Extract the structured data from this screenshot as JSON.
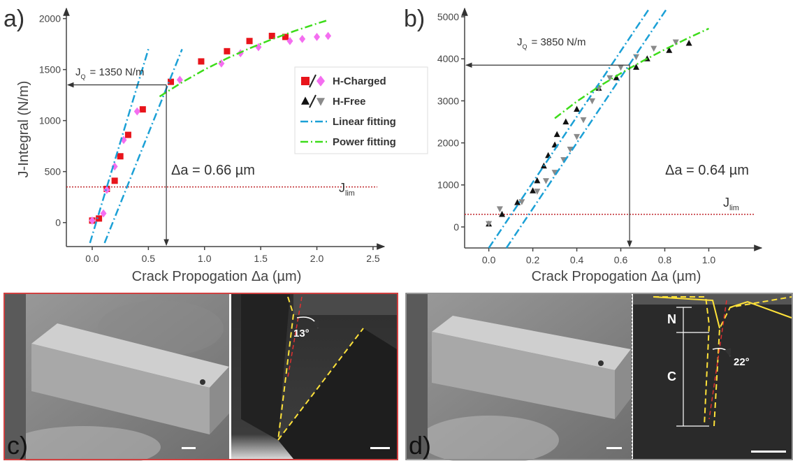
{
  "chart_data": [
    {
      "type": "scatter",
      "panel_label": "a)",
      "x_label": "Crack Propogation Δa (µm)",
      "y_label": "J-Integral (N/m)",
      "xlim": [
        -0.23,
        2.6
      ],
      "ylim": [
        -235,
        2100
      ],
      "xticks": [
        {
          "value": 0,
          "label": "0.0"
        },
        0.5,
        {
          "value": 1,
          "label": "1.0"
        },
        1.5,
        {
          "value": 2,
          "label": "2.0"
        },
        2.5
      ],
      "yticks": [
        0,
        500,
        1000,
        1500,
        2000
      ],
      "series": [
        {
          "marker": "square",
          "color": "#e8141b",
          "x": [
            0.0,
            0.06,
            0.13,
            0.2,
            0.25,
            0.32,
            0.45,
            0.7,
            0.97,
            1.2,
            1.4,
            1.6,
            1.72
          ],
          "values": [
            20,
            40,
            330,
            410,
            650,
            860,
            1110,
            1380,
            1580,
            1680,
            1780,
            1830,
            1820
          ]
        },
        {
          "marker": "diamond",
          "color": "#f46ef0",
          "x": [
            0.0,
            0.1,
            0.13,
            0.2,
            0.28,
            0.4,
            0.78,
            1.15,
            1.32,
            1.48,
            1.76,
            1.87,
            2.0,
            2.1
          ],
          "values": [
            20,
            90,
            320,
            550,
            810,
            1090,
            1400,
            1560,
            1660,
            1720,
            1780,
            1800,
            1820,
            1830
          ]
        },
        {
          "style": "dash-dot",
          "color": "#1ba0d6",
          "x": [
            -0.02,
            0.5
          ],
          "values": [
            -200,
            1700
          ]
        },
        {
          "style": "dash-dot",
          "color": "#1ba0d6",
          "x": [
            0.11,
            0.8
          ],
          "values": [
            -200,
            1700
          ]
        },
        {
          "style": "dash-dot",
          "color": "#3ddc1a",
          "x": [
            0.6,
            0.8,
            1.0,
            1.2,
            1.4,
            1.6,
            1.8,
            2.0,
            2.1
          ],
          "values": [
            1236,
            1375,
            1500,
            1610,
            1708,
            1797,
            1878,
            1951,
            1985
          ]
        }
      ],
      "jq": {
        "value": 1350,
        "symbol": "J",
        "subscript": "Q",
        "text": "= 1350 N/m"
      },
      "delta_a": {
        "value": 0.66,
        "label": "Δa = 0.66 µm"
      },
      "jlim": {
        "value": 350,
        "symbol": "J",
        "subscript": "lim",
        "color": "#c0282d"
      }
    },
    {
      "type": "scatter",
      "panel_label": "b)",
      "x_label": "Crack Propogation Δa (µm)",
      "xlim": [
        -0.11,
        1.24
      ],
      "ylim": [
        -500,
        5200
      ],
      "xticks": [
        {
          "value": 0,
          "label": "0.0"
        },
        0.2,
        0.4,
        0.6,
        0.8,
        {
          "value": 1,
          "label": "1.0"
        }
      ],
      "yticks": [
        0,
        1000,
        2000,
        3000,
        4000,
        5000
      ],
      "series": [
        {
          "marker": "triangle",
          "color": "#111111",
          "x": [
            0.0,
            0.06,
            0.13,
            0.2,
            0.22,
            0.25,
            0.27,
            0.3,
            0.31,
            0.35,
            0.4,
            0.5,
            0.58,
            0.67,
            0.72,
            0.82,
            0.91
          ],
          "values": [
            70,
            300,
            580,
            860,
            1100,
            1450,
            1700,
            1950,
            2200,
            2500,
            2800,
            3300,
            3550,
            3800,
            4000,
            4200,
            4370
          ]
        },
        {
          "marker": "triangle-down",
          "color": "#8a8a8a",
          "x": [
            0.0,
            0.05,
            0.15,
            0.22,
            0.26,
            0.3,
            0.34,
            0.37,
            0.4,
            0.43,
            0.47,
            0.5,
            0.55,
            0.6,
            0.67,
            0.75,
            0.85
          ],
          "values": [
            80,
            430,
            600,
            850,
            1100,
            1300,
            1600,
            1850,
            2150,
            2550,
            3000,
            3300,
            3550,
            3800,
            4050,
            4250,
            4400
          ]
        },
        {
          "style": "dash-dot",
          "color": "#1ba0d6",
          "x": [
            0.0,
            0.73
          ],
          "values": [
            -500,
            5200
          ]
        },
        {
          "style": "dash-dot",
          "color": "#1ba0d6",
          "x": [
            0.08,
            0.81
          ],
          "values": [
            -500,
            5200
          ]
        },
        {
          "style": "dash-dot",
          "color": "#3ddc1a",
          "x": [
            0.3,
            0.4,
            0.5,
            0.6,
            0.7,
            0.8,
            0.9,
            1.0
          ],
          "values": [
            2585,
            2985,
            3338,
            3656,
            3949,
            4222,
            4478,
            4720
          ]
        }
      ],
      "jq": {
        "value": 3850,
        "symbol": "J",
        "subscript": "Q",
        "text": "= 3850 N/m"
      },
      "delta_a": {
        "value": 0.64,
        "label": "Δa = 0.64 µm"
      },
      "jlim": {
        "value": 300,
        "symbol": "J",
        "subscript": "lim",
        "color": "#c0282d"
      }
    }
  ],
  "legend": {
    "entries": [
      {
        "name": "H-Charged",
        "markers": [
          {
            "marker": "square",
            "color": "#e8141b"
          },
          {
            "marker": "diamond",
            "color": "#f46ef0"
          }
        ]
      },
      {
        "name": "H-Free",
        "markers": [
          {
            "marker": "triangle",
            "color": "#111111"
          },
          {
            "marker": "triangle-down",
            "color": "#8a8a8a"
          }
        ]
      },
      {
        "name": "Linear fitting",
        "style": "dash-dot",
        "color": "#1ba0d6"
      },
      {
        "name": "Power fitting",
        "style": "dash-dot",
        "color": "#3ddc1a"
      }
    ]
  },
  "images": [
    {
      "label": "c)",
      "angle": "13°"
    },
    {
      "label": "d)",
      "notch": "N",
      "crack": "C",
      "angle": "22°"
    }
  ]
}
